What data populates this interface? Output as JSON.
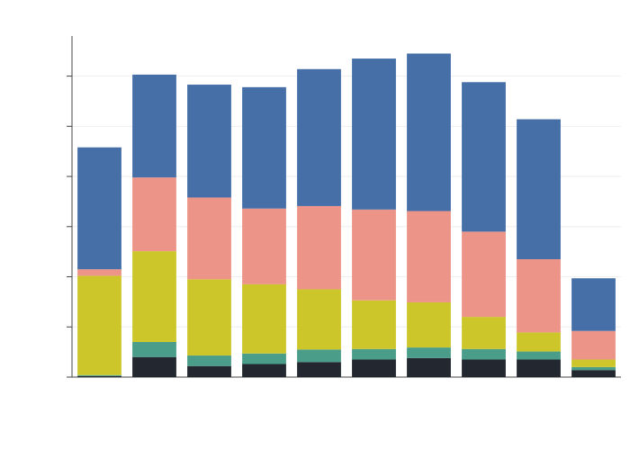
{
  "chart_data": {
    "type": "bar",
    "stacked": true,
    "title": "",
    "xlabel": "",
    "ylabel": "",
    "grid": true,
    "legend": "none",
    "categories": [
      "",
      "",
      "",
      "",
      "",
      "",
      "",
      "",
      "",
      ""
    ],
    "ylim": [
      0,
      6.8
    ],
    "series": [
      {
        "color": "#23272f",
        "values": [
          0.02,
          0.4,
          0.22,
          0.26,
          0.3,
          0.35,
          0.38,
          0.35,
          0.35,
          0.14
        ]
      },
      {
        "color": "#4a9d89",
        "values": [
          0.02,
          0.3,
          0.21,
          0.21,
          0.25,
          0.21,
          0.21,
          0.21,
          0.16,
          0.06
        ]
      },
      {
        "color": "#cdc62a",
        "values": [
          1.98,
          1.81,
          1.52,
          1.38,
          1.2,
          0.97,
          0.9,
          0.64,
          0.38,
          0.15
        ]
      },
      {
        "color": "#ec9487",
        "values": [
          0.13,
          1.47,
          1.63,
          1.51,
          1.66,
          1.81,
          1.82,
          1.7,
          1.46,
          0.57
        ]
      },
      {
        "color": "#466fa8",
        "values": [
          2.43,
          2.05,
          2.25,
          2.42,
          2.73,
          3.01,
          3.14,
          2.98,
          2.79,
          1.05
        ]
      }
    ]
  }
}
